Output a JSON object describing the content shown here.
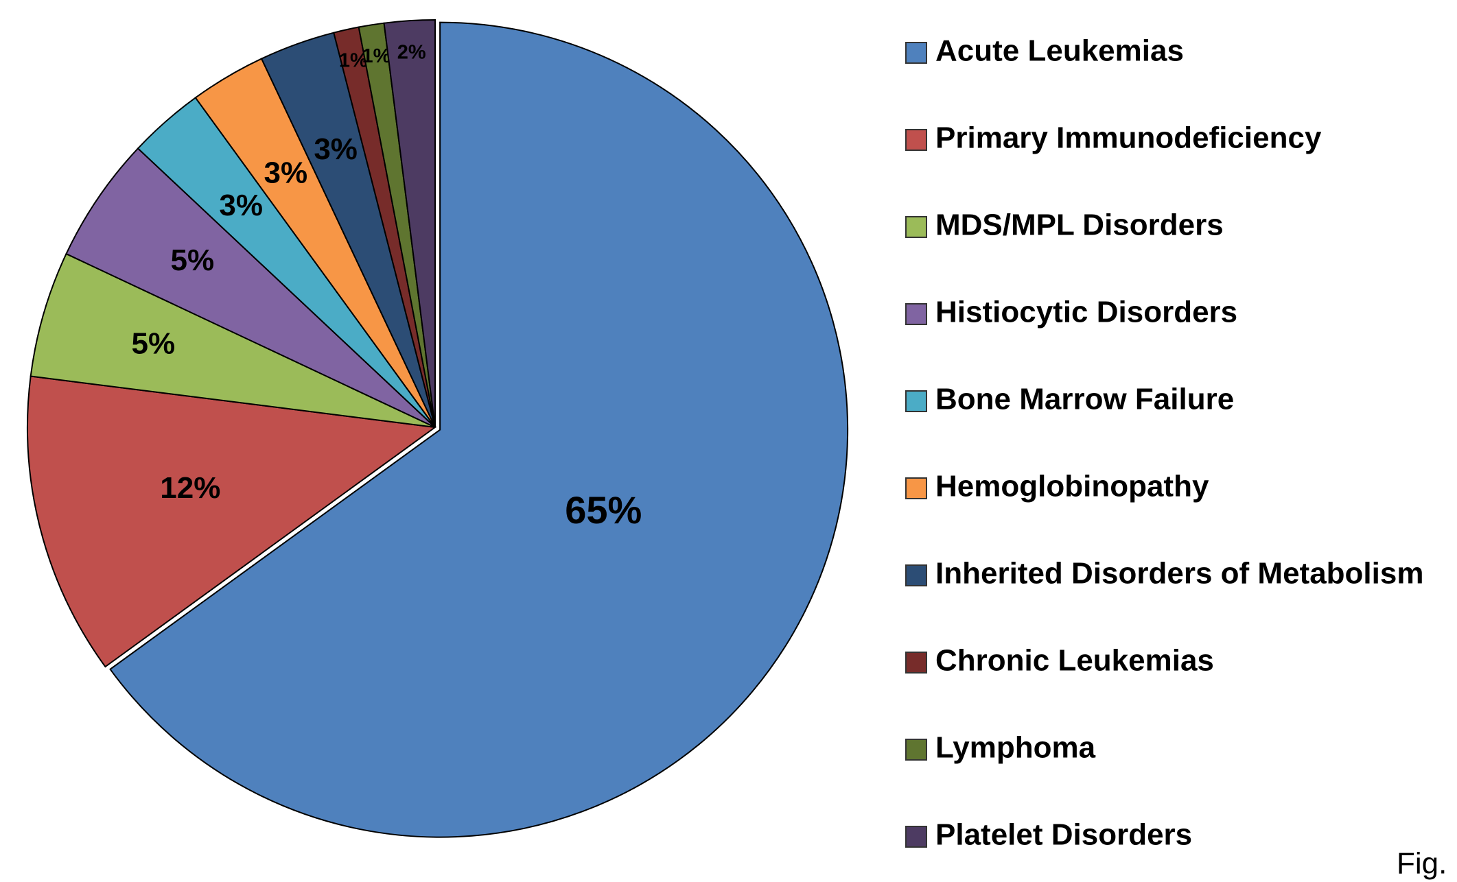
{
  "chart_data": {
    "type": "pie",
    "categories": [
      "Acute Leukemias",
      "Primary Immunodeficiency",
      "MDS/MPL Disorders",
      "Histiocytic Disorders",
      "Bone Marrow Failure",
      "Hemoglobinopathy",
      "Inherited Disorders of Metabolism",
      "Chronic Leukemias",
      "Lymphoma",
      "Platelet Disorders"
    ],
    "values": [
      65,
      12,
      5,
      5,
      3,
      3,
      3,
      1,
      1,
      2
    ],
    "value_labels": [
      "65%",
      "12%",
      "5%",
      "5%",
      "3%",
      "3%",
      "3%",
      "1%",
      "1%",
      "2%"
    ],
    "colors": [
      "#4f81bd",
      "#c0504d",
      "#9bbb59",
      "#8064a2",
      "#4bacc6",
      "#f79646",
      "#2c4d75",
      "#772c2a",
      "#5f7530",
      "#4d3b62"
    ],
    "legend": "right",
    "annotation": "Fig."
  }
}
